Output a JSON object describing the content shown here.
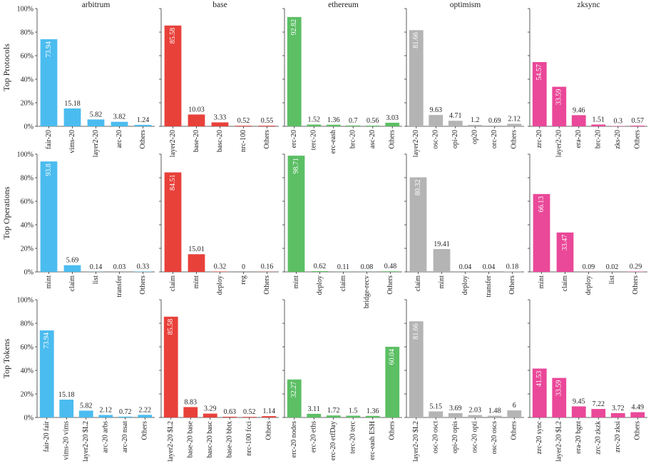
{
  "figure": {
    "columns": [
      "arbitrum",
      "base",
      "ethereum",
      "optimism",
      "zksync"
    ],
    "rows": [
      "Top Protocols",
      "Top Operations",
      "Top Tokens"
    ],
    "colors": {
      "arbitrum": "#4bbcef",
      "base": "#e8413a",
      "ethereum": "#5cbf64",
      "optimism": "#b4b4b4",
      "zksync": "#ea4899"
    },
    "y_ticks": [
      "0%",
      "20%",
      "40%",
      "60%",
      "80%",
      "100%"
    ]
  },
  "chart_data": [
    {
      "type": "bar",
      "row": "Top Protocols",
      "chain": "arbitrum",
      "categories": [
        "fair-20",
        "vims-20",
        "layer2-20",
        "arc-20",
        "Others"
      ],
      "values": [
        73.94,
        15.18,
        5.82,
        3.82,
        1.24
      ],
      "ylim": [
        0,
        100
      ]
    },
    {
      "type": "bar",
      "row": "Top Protocols",
      "chain": "base",
      "categories": [
        "layer2-20",
        "base-20",
        "basc-20",
        "nrc-100",
        "Others"
      ],
      "values": [
        85.58,
        10.03,
        3.33,
        0.52,
        0.55
      ],
      "ylim": [
        0,
        100
      ]
    },
    {
      "type": "bar",
      "row": "Top Protocols",
      "chain": "ethereum",
      "categories": [
        "erc-20",
        "terc-20",
        "erc-eash",
        "brc-20",
        "asc-20",
        "Others"
      ],
      "values": [
        92.82,
        1.52,
        1.36,
        0.7,
        0.56,
        3.03
      ],
      "ylim": [
        0,
        100
      ]
    },
    {
      "type": "bar",
      "row": "Top Protocols",
      "chain": "optimism",
      "categories": [
        "layer2-20",
        "osc-20",
        "opi-20",
        "op20",
        "orc-20",
        "Others"
      ],
      "values": [
        81.66,
        9.63,
        4.71,
        1.2,
        0.69,
        2.12
      ],
      "ylim": [
        0,
        100
      ]
    },
    {
      "type": "bar",
      "row": "Top Protocols",
      "chain": "zksync",
      "categories": [
        "zrc-20",
        "layer2-20",
        "era-20",
        "brc-20",
        "zks-20",
        "Others"
      ],
      "values": [
        54.57,
        33.59,
        9.46,
        1.51,
        0.3,
        0.57
      ],
      "ylim": [
        0,
        100
      ]
    },
    {
      "type": "bar",
      "row": "Top Operations",
      "chain": "arbitrum",
      "categories": [
        "mint",
        "claim",
        "list",
        "transfer",
        "Others"
      ],
      "values": [
        93.8,
        5.69,
        0.14,
        0.03,
        0.33
      ],
      "ylim": [
        0,
        100
      ]
    },
    {
      "type": "bar",
      "row": "Top Operations",
      "chain": "base",
      "categories": [
        "claim",
        "mint",
        "deploy",
        "reg",
        "Others"
      ],
      "values": [
        84.51,
        15.01,
        0.32,
        0,
        0.16
      ],
      "ylim": [
        0,
        100
      ]
    },
    {
      "type": "bar",
      "row": "Top Operations",
      "chain": "ethereum",
      "categories": [
        "mint",
        "deploy",
        "claim",
        "bridge-recv",
        "Others"
      ],
      "values": [
        98.71,
        0.62,
        0.11,
        0.08,
        0.48
      ],
      "ylim": [
        0,
        100
      ]
    },
    {
      "type": "bar",
      "row": "Top Operations",
      "chain": "optimism",
      "categories": [
        "claim",
        "mint",
        "deploy",
        "transfer",
        "Others"
      ],
      "values": [
        80.32,
        19.41,
        0.04,
        0.04,
        0.18
      ],
      "ylim": [
        0,
        100
      ]
    },
    {
      "type": "bar",
      "row": "Top Operations",
      "chain": "zksync",
      "categories": [
        "mint",
        "claim",
        "deploy",
        "list",
        "Others"
      ],
      "values": [
        66.13,
        33.47,
        0.09,
        0.02,
        0.29
      ],
      "ylim": [
        0,
        100
      ]
    },
    {
      "type": "bar",
      "row": "Top Tokens",
      "chain": "arbitrum",
      "categories": [
        "fair-20 fair",
        "vims-20 vims",
        "layer2-20 $L2",
        "arc-20 arbs",
        "arc-20 nsat",
        "Others"
      ],
      "values": [
        73.94,
        15.18,
        5.82,
        2.12,
        0.72,
        2.22
      ],
      "ylim": [
        0,
        100
      ]
    },
    {
      "type": "bar",
      "row": "Top Tokens",
      "chain": "base",
      "categories": [
        "layer2-20 $L2",
        "base-20 base",
        "basc-20 basc",
        "base-20 bbtx",
        "nrc-100 fcci",
        "Others"
      ],
      "values": [
        85.58,
        8.83,
        3.29,
        0.63,
        0.52,
        1.14
      ],
      "ylim": [
        0,
        100
      ]
    },
    {
      "type": "bar",
      "row": "Top Tokens",
      "chain": "ethereum",
      "categories": [
        "erc-20 nodes",
        "erc-20 eths",
        "erc-20 etfDay",
        "terc-20 terc",
        "erc-eash ESH",
        "Others"
      ],
      "values": [
        32.27,
        3.11,
        1.72,
        1.5,
        1.36,
        60.04
      ],
      "ylim": [
        0,
        100
      ]
    },
    {
      "type": "bar",
      "row": "Top Tokens",
      "chain": "optimism",
      "categories": [
        "layer2-20 $L2",
        "osc-20 osct",
        "opi-20 opis",
        "osc-20 opti",
        "osc-20 oscs",
        "Others"
      ],
      "values": [
        81.66,
        5.15,
        3.69,
        2.03,
        1.48,
        6
      ],
      "ylim": [
        0,
        100
      ]
    },
    {
      "type": "bar",
      "row": "Top Tokens",
      "chain": "zksync",
      "categories": [
        "zrc-20 sync",
        "layer2-20 $L2",
        "era-20 bgnt",
        "zrc-20 zkzk",
        "zrc-20 zksi",
        "Others"
      ],
      "values": [
        41.53,
        33.59,
        9.45,
        7.22,
        3.72,
        4.49
      ],
      "ylim": [
        0,
        100
      ]
    }
  ]
}
